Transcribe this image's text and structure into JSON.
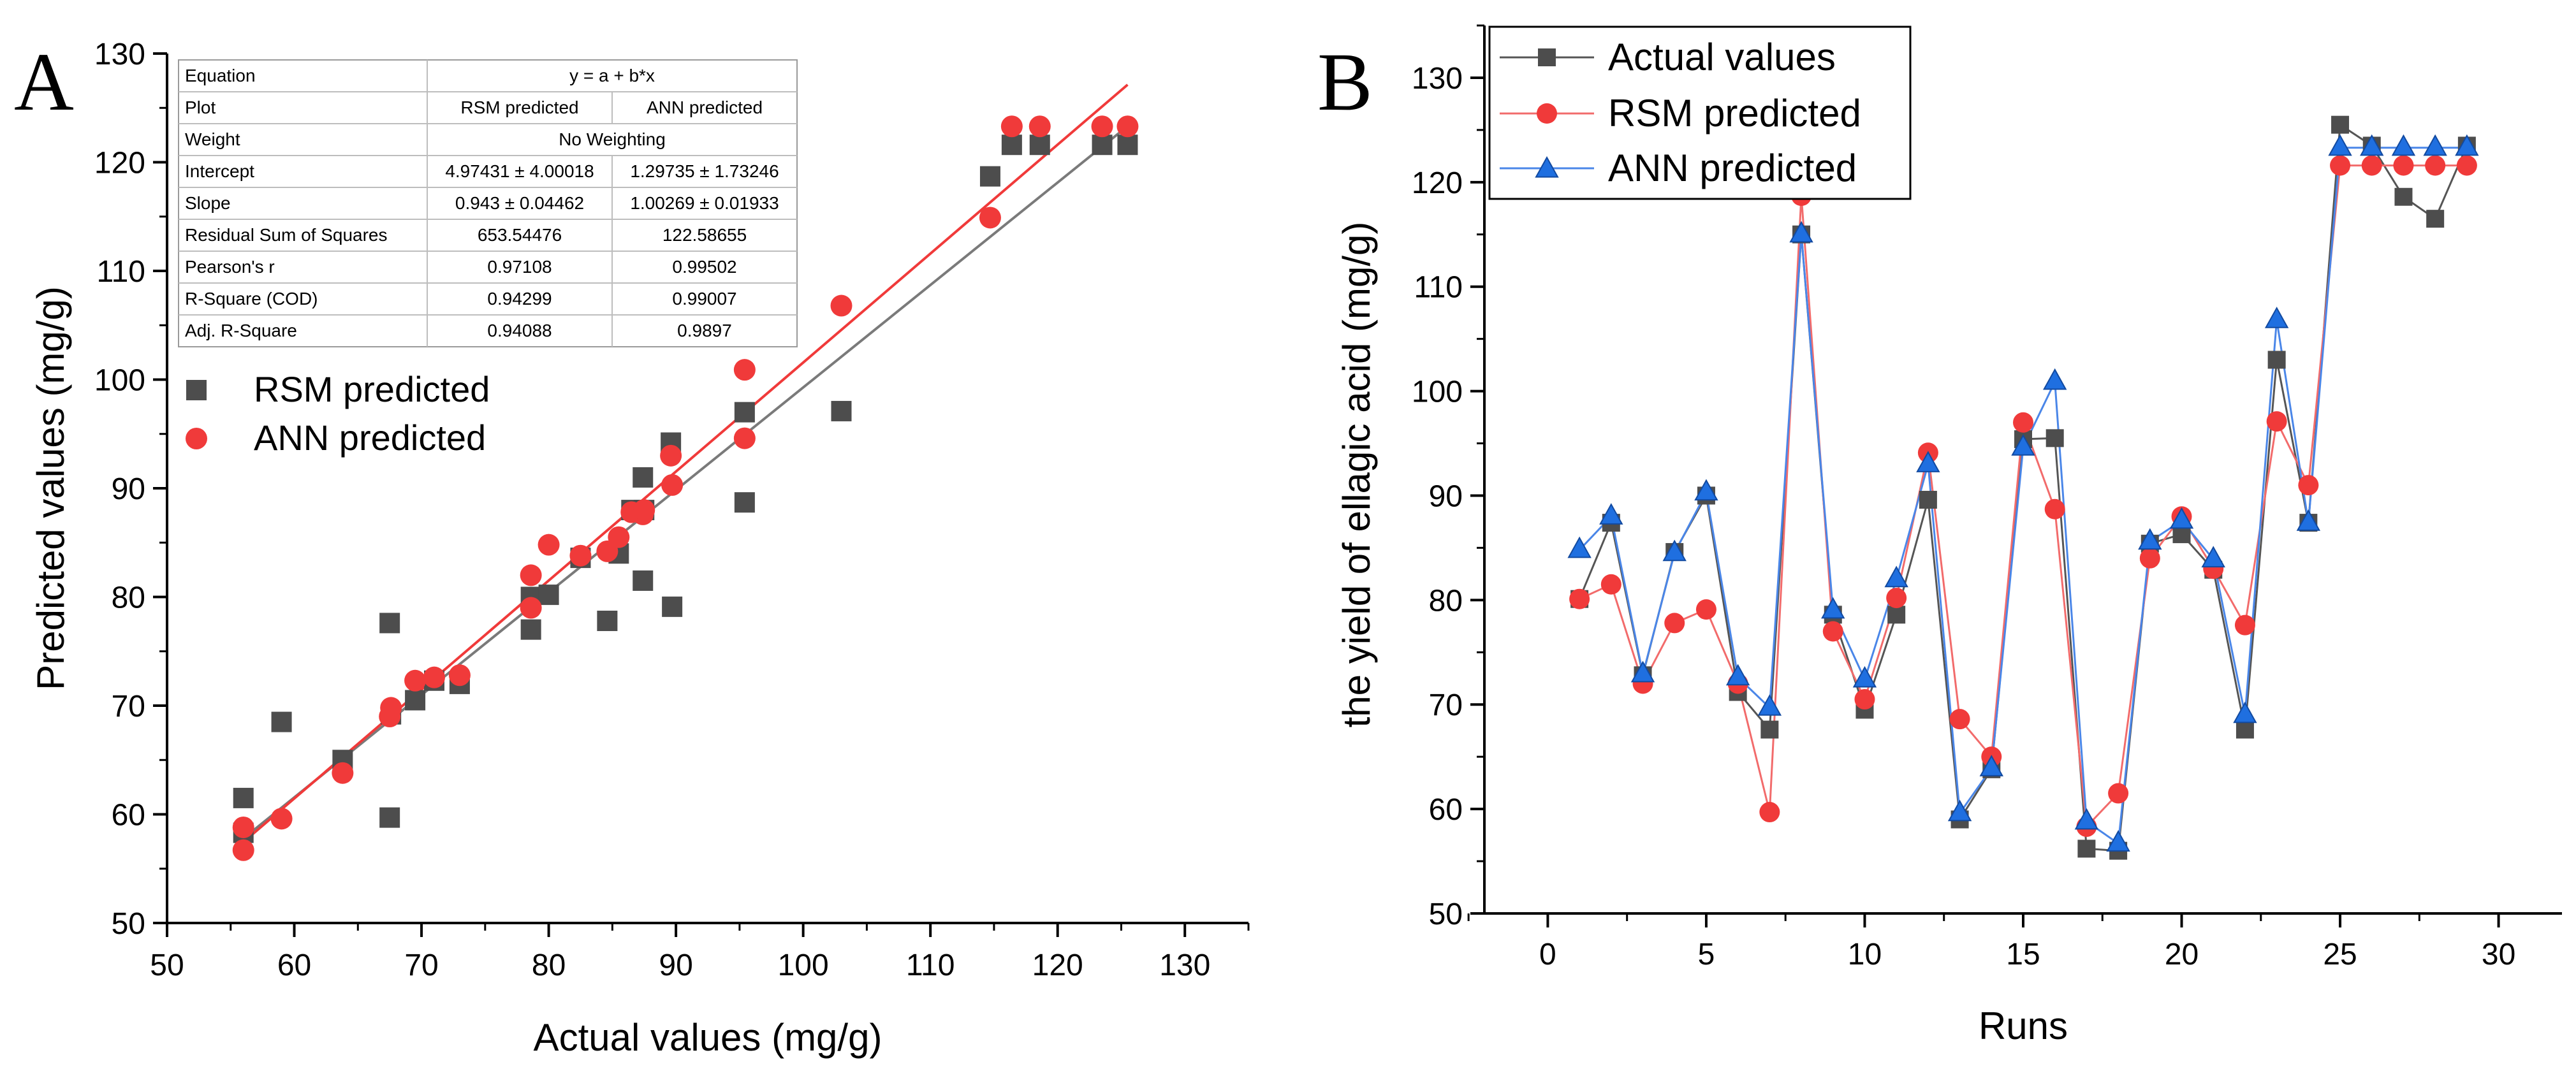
{
  "colors": {
    "rsm_square": "#4d4d4d",
    "ann_circle": "#f03a3a",
    "rsm_line": "#7a7a7a",
    "ann_line": "#f03a3a",
    "b_actual": "#4d4d4d",
    "b_rsm": "#f03a3a",
    "b_ann": "#1f6fe0"
  },
  "chart_data": [
    {
      "panel": "A",
      "type": "scatter",
      "xlabel": "Actual values (mg/g)",
      "ylabel": "Predicted values (mg/g)",
      "xlim": [
        50,
        135
      ],
      "ylim": [
        50,
        130
      ],
      "xticks": [
        50,
        60,
        70,
        80,
        90,
        100,
        110,
        120,
        130
      ],
      "yticks": [
        50,
        60,
        70,
        80,
        90,
        100,
        110,
        120,
        130
      ],
      "legend": {
        "position": "upper-left",
        "entries": [
          "RSM predicted",
          "ANN predicted"
        ]
      },
      "series": [
        {
          "name": "RSM predicted",
          "marker": "square",
          "points": [
            [
              56,
              61.5
            ],
            [
              56,
              58.3
            ],
            [
              59,
              68.5
            ],
            [
              63.8,
              65
            ],
            [
              67.5,
              59.7
            ],
            [
              67.5,
              77.6
            ],
            [
              67.6,
              69.2
            ],
            [
              69.5,
              70.5
            ],
            [
              71,
              72.3
            ],
            [
              73,
              72
            ],
            [
              78.6,
              77
            ],
            [
              78.6,
              80
            ],
            [
              80,
              80.2
            ],
            [
              82.5,
              83.6
            ],
            [
              84.6,
              77.8
            ],
            [
              85.5,
              84
            ],
            [
              86.5,
              88
            ],
            [
              87.4,
              91
            ],
            [
              87.4,
              81.5
            ],
            [
              87.5,
              88
            ],
            [
              89.6,
              94.2
            ],
            [
              89.7,
              79.1
            ],
            [
              95.4,
              97
            ],
            [
              95.4,
              88.7
            ],
            [
              103,
              97.1
            ],
            [
              114.7,
              118.7
            ],
            [
              116.4,
              121.6
            ],
            [
              118.6,
              121.6
            ],
            [
              123.5,
              121.6
            ],
            [
              125.5,
              121.6
            ]
          ]
        },
        {
          "name": "ANN predicted",
          "marker": "circle",
          "points": [
            [
              56,
              56.7
            ],
            [
              56,
              58.8
            ],
            [
              59,
              59.6
            ],
            [
              63.8,
              63.8
            ],
            [
              67.5,
              69
            ],
            [
              67.6,
              69.8
            ],
            [
              69.5,
              72.3
            ],
            [
              71,
              72.6
            ],
            [
              73,
              72.8
            ],
            [
              78.6,
              82
            ],
            [
              78.6,
              79
            ],
            [
              80,
              84.8
            ],
            [
              82.5,
              83.8
            ],
            [
              84.6,
              84.2
            ],
            [
              85.5,
              85.5
            ],
            [
              86.5,
              87.8
            ],
            [
              87.4,
              87.6
            ],
            [
              87.5,
              88
            ],
            [
              89.6,
              93
            ],
            [
              89.7,
              90.3
            ],
            [
              95.4,
              100.9
            ],
            [
              95.4,
              94.6
            ],
            [
              103,
              106.8
            ],
            [
              114.7,
              114.9
            ],
            [
              116.4,
              123.3
            ],
            [
              118.6,
              123.3
            ],
            [
              123.5,
              123.3
            ],
            [
              125.5,
              123.3
            ]
          ]
        }
      ],
      "fit_lines": [
        {
          "name": "RSM predicted",
          "intercept": 4.97431,
          "slope": 0.943,
          "x_range": [
            56,
            125.5
          ]
        },
        {
          "name": "ANN predicted",
          "intercept": 1.29735,
          "slope": 1.00269,
          "x_range": [
            56,
            125.5
          ]
        }
      ],
      "stats_table": {
        "rows": [
          {
            "label": "Equation",
            "span": "y = a + b*x"
          },
          {
            "label": "Plot",
            "rsm": "RSM predicted",
            "ann": "ANN predicted"
          },
          {
            "label": "Weight",
            "span": "No Weighting"
          },
          {
            "label": "Intercept",
            "rsm": "4.97431 ± 4.00018",
            "ann": "1.29735 ± 1.73246"
          },
          {
            "label": "Slope",
            "rsm": "0.943 ± 0.04462",
            "ann": "1.00269 ± 0.01933"
          },
          {
            "label": "Residual Sum of Squares",
            "rsm": "653.54476",
            "ann": "122.58655"
          },
          {
            "label": "Pearson's r",
            "rsm": "0.97108",
            "ann": "0.99502"
          },
          {
            "label": "R-Square (COD)",
            "rsm": "0.94299",
            "ann": "0.99007"
          },
          {
            "label": "Adj. R-Square",
            "rsm": "0.94088",
            "ann": "0.9897"
          }
        ]
      }
    },
    {
      "panel": "B",
      "type": "line",
      "xlabel": "Runs",
      "ylabel": "the yield of ellagic acid (mg/g)",
      "xlim": [
        -2,
        32
      ],
      "ylim": [
        50,
        135
      ],
      "xticks": [
        0,
        5,
        10,
        15,
        20,
        25,
        30
      ],
      "yticks": [
        50,
        60,
        70,
        80,
        90,
        100,
        110,
        120,
        130
      ],
      "legend": {
        "position": "top-left",
        "entries": [
          "Actual values",
          "RSM predicted",
          "ANN predicted"
        ]
      },
      "x": [
        1,
        2,
        3,
        4,
        5,
        6,
        7,
        8,
        9,
        10,
        11,
        12,
        13,
        14,
        15,
        16,
        17,
        18,
        19,
        20,
        21,
        22,
        23,
        24,
        25,
        26,
        27,
        28,
        29
      ],
      "series": [
        {
          "name": "Actual values",
          "marker": "square",
          "values": [
            80.1,
            87.4,
            72.8,
            84.6,
            90.0,
            71.2,
            67.6,
            115.0,
            78.6,
            69.5,
            78.6,
            89.6,
            59.0,
            63.8,
            95.4,
            95.5,
            56.2,
            56.0,
            85.4,
            86.3,
            82.9,
            67.6,
            103.0,
            87.4,
            125.5,
            123.5,
            118.6,
            116.5,
            123.5
          ]
        },
        {
          "name": "RSM predicted",
          "marker": "circle",
          "values": [
            80.1,
            81.5,
            72.0,
            77.8,
            79.1,
            72.0,
            59.7,
            118.7,
            77.0,
            70.5,
            80.2,
            94.1,
            68.6,
            65.0,
            97.0,
            88.7,
            58.3,
            61.5,
            84.0,
            88.0,
            83.0,
            77.6,
            97.1,
            91.0,
            121.6,
            121.6,
            121.6,
            121.6,
            121.6
          ]
        },
        {
          "name": "ANN predicted",
          "marker": "triangle",
          "values": [
            84.8,
            88.0,
            72.9,
            84.5,
            90.3,
            72.6,
            69.7,
            115.0,
            79.0,
            72.4,
            82.0,
            93.0,
            59.6,
            63.9,
            94.6,
            100.9,
            58.8,
            56.7,
            85.6,
            87.6,
            83.9,
            69.0,
            106.8,
            87.4,
            123.3,
            123.3,
            123.3,
            123.3,
            123.3
          ]
        }
      ]
    }
  ],
  "panel_labels": {
    "a": "A",
    "b": "B"
  }
}
